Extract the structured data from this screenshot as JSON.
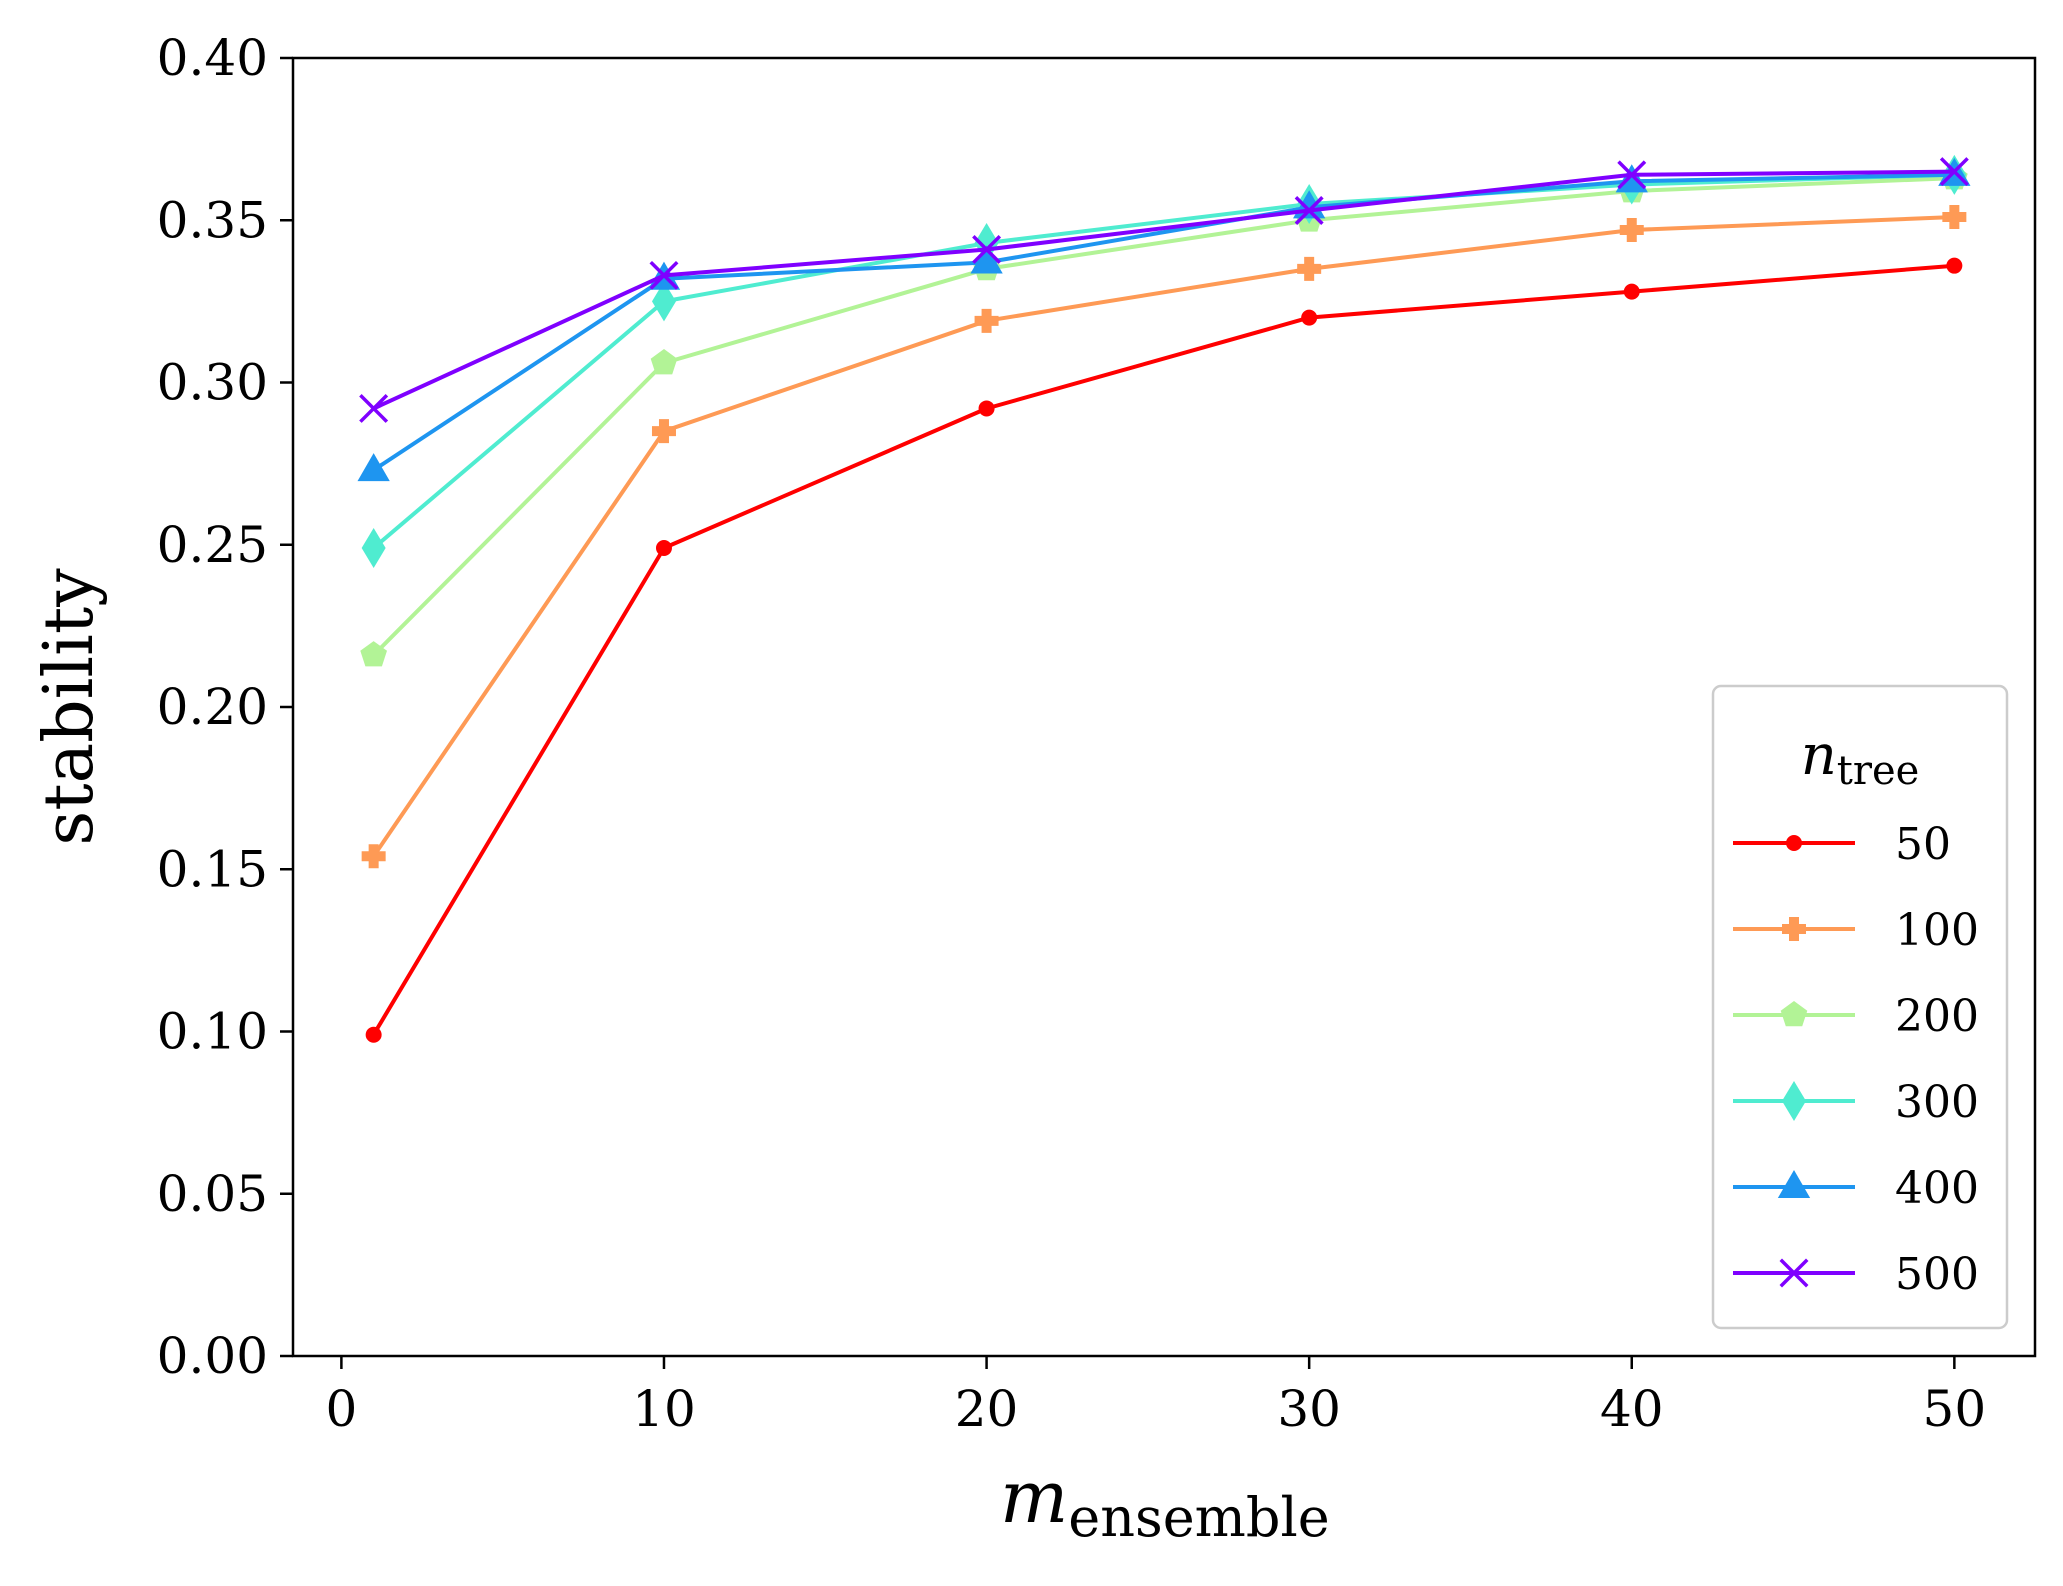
{
  "chart_data": {
    "type": "line",
    "title": "",
    "xlabel": {
      "main": "m",
      "sub": "ensemble"
    },
    "ylabel": "stability",
    "xlim": [
      -1.5,
      52.5
    ],
    "ylim": [
      0,
      0.4
    ],
    "xticks": [
      0,
      10,
      20,
      30,
      40,
      50
    ],
    "xtick_labels": [
      "0",
      "10",
      "20",
      "30",
      "40",
      "50"
    ],
    "yticks": [
      0,
      0.05,
      0.1,
      0.15,
      0.2,
      0.25,
      0.3,
      0.35,
      0.4
    ],
    "ytick_labels": [
      "0.00",
      "0.05",
      "0.10",
      "0.15",
      "0.20",
      "0.25",
      "0.30",
      "0.35",
      "0.40"
    ],
    "grid": false,
    "legend": {
      "placement": "lower-right",
      "title": {
        "main": "n",
        "sub": "tree"
      }
    },
    "x": [
      1,
      10,
      20,
      30,
      40,
      50
    ],
    "series": [
      {
        "name": "50",
        "color": "#ff0000",
        "marker": "dot",
        "values": [
          0.099,
          0.249,
          0.292,
          0.32,
          0.328,
          0.336
        ]
      },
      {
        "name": "100",
        "color": "#fe9a55",
        "marker": "plus",
        "values": [
          0.154,
          0.285,
          0.319,
          0.335,
          0.347,
          0.351
        ]
      },
      {
        "name": "200",
        "color": "#b2f396",
        "marker": "pentagon",
        "values": [
          0.216,
          0.306,
          0.335,
          0.35,
          0.359,
          0.363
        ]
      },
      {
        "name": "300",
        "color": "#4fecd0",
        "marker": "diamond",
        "values": [
          0.249,
          0.325,
          0.343,
          0.355,
          0.361,
          0.364
        ]
      },
      {
        "name": "400",
        "color": "#1e95f0",
        "marker": "triangle",
        "values": [
          0.273,
          0.332,
          0.337,
          0.354,
          0.362,
          0.364
        ]
      },
      {
        "name": "500",
        "color": "#7f00ff",
        "marker": "x",
        "values": [
          0.292,
          0.333,
          0.341,
          0.353,
          0.364,
          0.365
        ]
      }
    ]
  }
}
